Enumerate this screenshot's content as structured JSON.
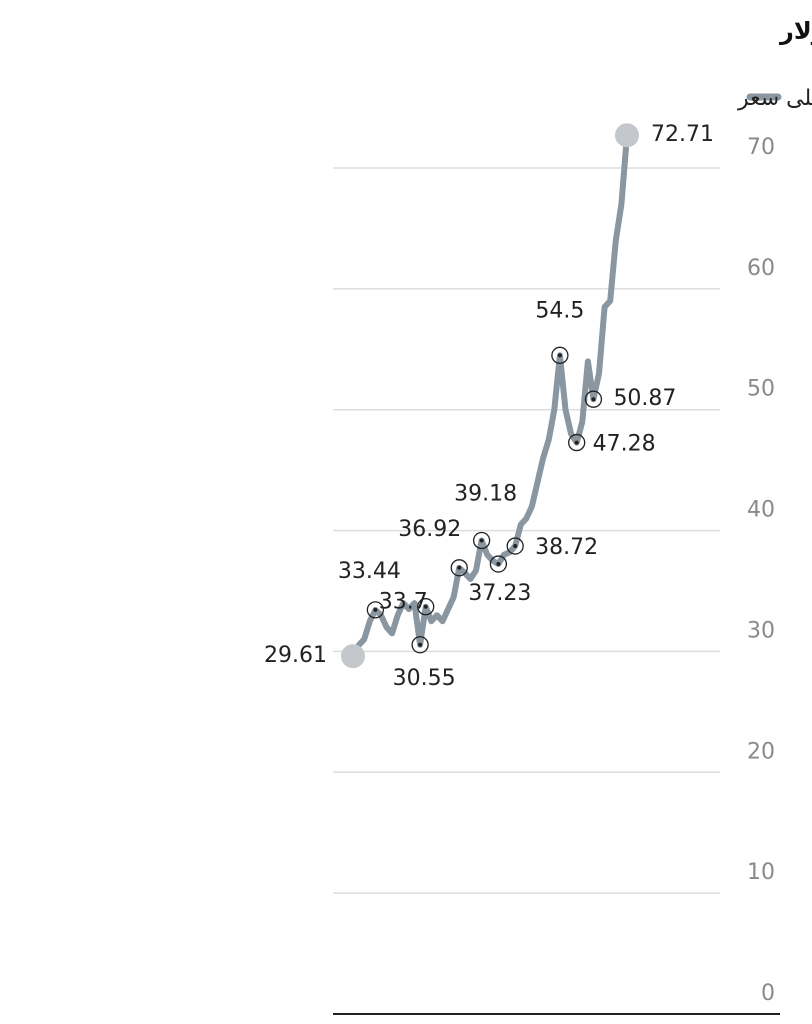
{
  "chart_data": {
    "type": "line",
    "title": "أوقية/دولار",
    "categories": [
      null,
      null,
      null,
      null,
      null,
      null,
      null,
      null,
      null,
      null,
      null,
      null,
      null,
      null,
      null,
      null,
      null,
      null,
      null,
      null,
      null,
      null,
      null,
      null,
      null,
      null,
      null,
      null,
      null,
      null,
      null,
      null,
      null,
      null,
      null,
      null,
      null,
      null,
      null,
      null,
      null,
      null,
      null,
      null,
      null,
      null,
      null,
      null,
      null,
      null
    ],
    "series": [
      {
        "name": "أعلى سعر",
        "color": "#8a96a0",
        "values": [
          29.61,
          30.5,
          31,
          32.5,
          33.44,
          33,
          32,
          31.5,
          33,
          34,
          33.5,
          34,
          30.55,
          33.7,
          32.5,
          33,
          32.5,
          33.5,
          34.5,
          36.92,
          36.5,
          36,
          36.7,
          39.18,
          38,
          37.5,
          37.23,
          38,
          38.2,
          38.72,
          40.5,
          41,
          42,
          44,
          46,
          47.5,
          50,
          54.5,
          50,
          48,
          47.28,
          49,
          54,
          50.87,
          53,
          58.5,
          59,
          64,
          67,
          72.71
        ],
        "value_labels": [
          "29.61",
          null,
          null,
          null,
          "33.44",
          null,
          null,
          null,
          null,
          null,
          null,
          null,
          "30.55",
          "33.7",
          null,
          null,
          null,
          null,
          null,
          "36.92",
          null,
          null,
          null,
          "39.18",
          null,
          null,
          "37.23",
          null,
          null,
          "38.72",
          null,
          null,
          null,
          null,
          null,
          null,
          null,
          "54.5",
          null,
          null,
          "47.28",
          null,
          null,
          "50.87",
          null,
          null,
          null,
          null,
          null,
          "72.71"
        ]
      }
    ],
    "ylim": [
      0,
      70
    ],
    "yticks": [
      0,
      10,
      20,
      30,
      40,
      50,
      60,
      70
    ],
    "grid": true,
    "legend": "top-right"
  }
}
